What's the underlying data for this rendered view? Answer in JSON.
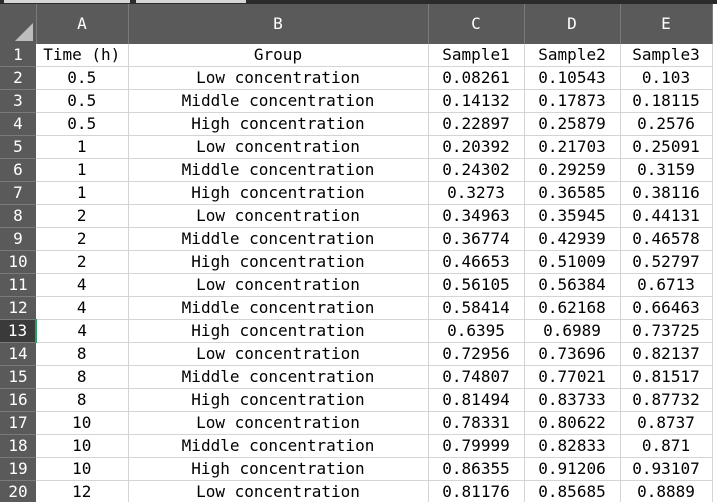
{
  "sheet": {
    "column_letters": [
      "A",
      "B",
      "C",
      "D",
      "E"
    ],
    "row_numbers": [
      "1",
      "2",
      "3",
      "4",
      "5",
      "6",
      "7",
      "8",
      "9",
      "10",
      "11",
      "12",
      "13",
      "14",
      "15",
      "16",
      "17",
      "18",
      "19",
      "20"
    ],
    "selected_row": "13",
    "rows": [
      [
        "Time (h)",
        "Group",
        "Sample1",
        "Sample2",
        "Sample3"
      ],
      [
        "0.5",
        "Low concentration",
        "0.08261",
        "0.10543",
        "0.103"
      ],
      [
        "0.5",
        "Middle concentration",
        "0.14132",
        "0.17873",
        "0.18115"
      ],
      [
        "0.5",
        "High concentration",
        "0.22897",
        "0.25879",
        "0.2576"
      ],
      [
        "1",
        "Low concentration",
        "0.20392",
        "0.21703",
        "0.25091"
      ],
      [
        "1",
        "Middle concentration",
        "0.24302",
        "0.29259",
        "0.3159"
      ],
      [
        "1",
        "High concentration",
        "0.3273",
        "0.36585",
        "0.38116"
      ],
      [
        "2",
        "Low concentration",
        "0.34963",
        "0.35945",
        "0.44131"
      ],
      [
        "2",
        "Middle concentration",
        "0.36774",
        "0.42939",
        "0.46578"
      ],
      [
        "2",
        "High concentration",
        "0.46653",
        "0.51009",
        "0.52797"
      ],
      [
        "4",
        "Low concentration",
        "0.56105",
        "0.56384",
        "0.6713"
      ],
      [
        "4",
        "Middle concentration",
        "0.58414",
        "0.62168",
        "0.66463"
      ],
      [
        "4",
        "High concentration",
        "0.6395",
        "0.6989",
        "0.73725"
      ],
      [
        "8",
        "Low concentration",
        "0.72956",
        "0.73696",
        "0.82137"
      ],
      [
        "8",
        "Middle concentration",
        "0.74807",
        "0.77021",
        "0.81517"
      ],
      [
        "8",
        "High concentration",
        "0.81494",
        "0.83733",
        "0.87732"
      ],
      [
        "10",
        "Low concentration",
        "0.78331",
        "0.80622",
        "0.8737"
      ],
      [
        "10",
        "Middle concentration",
        "0.79999",
        "0.82833",
        "0.871"
      ],
      [
        "10",
        "High concentration",
        "0.86355",
        "0.91206",
        "0.93107"
      ],
      [
        "12",
        "Low concentration",
        "0.81176",
        "0.85685",
        "0.8889"
      ]
    ]
  },
  "colors": {
    "header_bg": "#5a5a5a",
    "header_text": "#ffffff",
    "gridline": "#d4d4d4",
    "selection_accent": "#21a366"
  },
  "icons": {
    "corner": "select-all-triangle-icon"
  }
}
